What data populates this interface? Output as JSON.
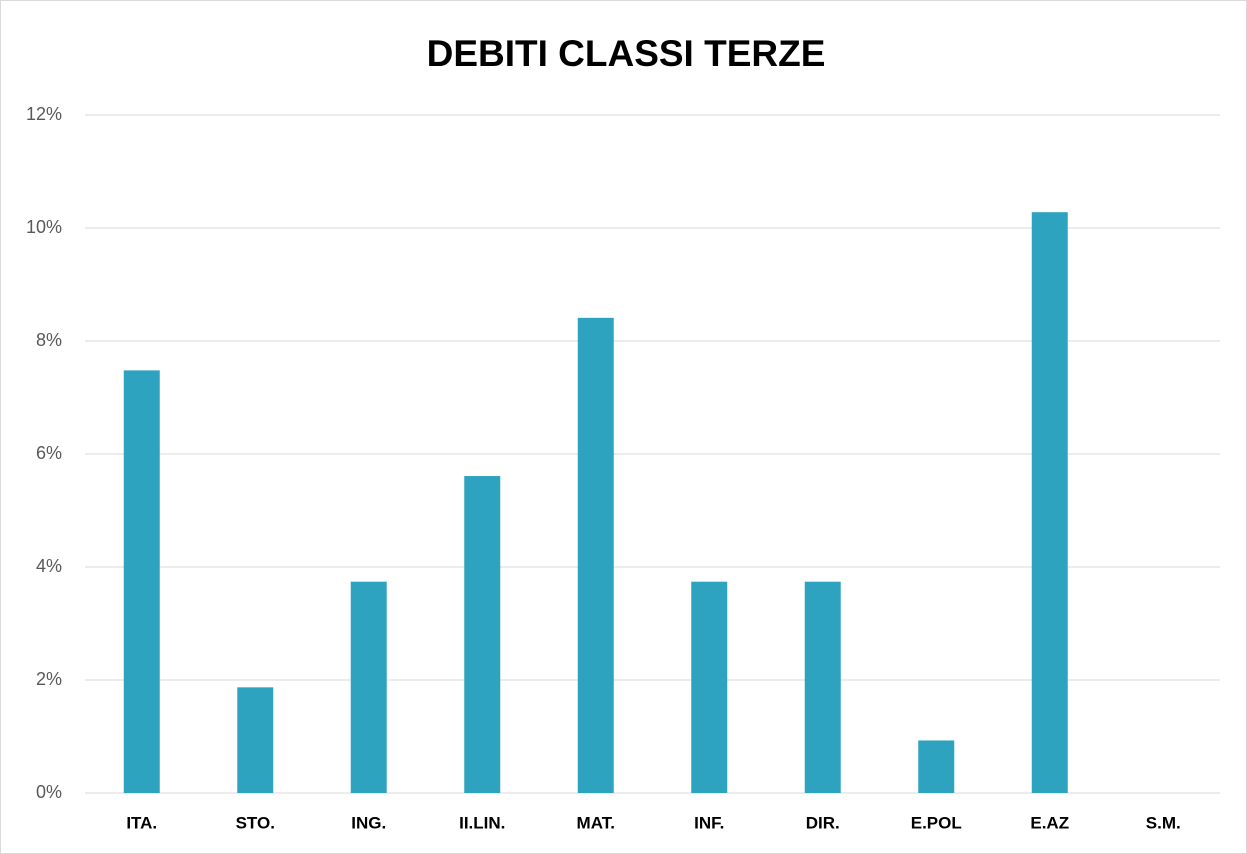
{
  "chart_data": {
    "type": "bar",
    "title": "DEBITI CLASSI TERZE",
    "categories": [
      "ITA.",
      "STO.",
      "ING.",
      "II.LIN.",
      "MAT.",
      "INF.",
      "DIR.",
      "E.POL",
      "E.AZ",
      "S.M."
    ],
    "values": [
      7.48,
      1.87,
      3.74,
      5.61,
      8.41,
      3.74,
      3.74,
      0.93,
      10.28,
      0
    ],
    "color": "#2ea3bf",
    "ylim": [
      0,
      12
    ],
    "yticks": [
      {
        "value": 0,
        "label": "0%"
      },
      {
        "value": 2,
        "label": "2%"
      },
      {
        "value": 4,
        "label": "4%"
      },
      {
        "value": 6,
        "label": "6%"
      },
      {
        "value": 8,
        "label": "8%"
      },
      {
        "value": 10,
        "label": "10%"
      },
      {
        "value": 12,
        "label": "12%"
      }
    ],
    "grid": true
  }
}
